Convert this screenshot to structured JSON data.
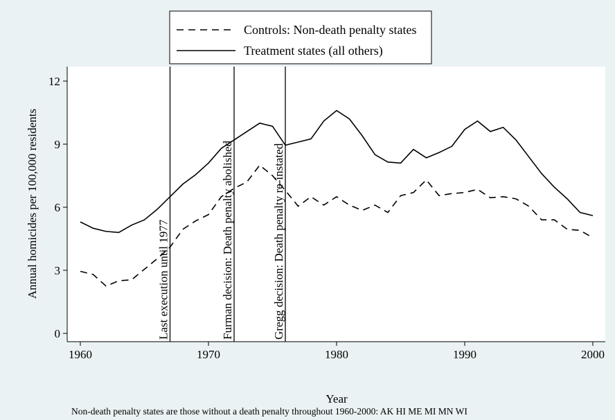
{
  "chart_data": {
    "type": "line",
    "x_label": "Year",
    "y_label": "Annual homicides per 100,000 residents",
    "note": "Non-death penalty states are those without a death penalty throughout 1960-2000: AK HI ME MI MN WI",
    "x": [
      1960,
      1961,
      1962,
      1963,
      1964,
      1965,
      1966,
      1967,
      1968,
      1969,
      1970,
      1971,
      1972,
      1973,
      1974,
      1975,
      1976,
      1977,
      1978,
      1979,
      1980,
      1981,
      1982,
      1983,
      1984,
      1985,
      1986,
      1987,
      1988,
      1989,
      1990,
      1991,
      1992,
      1993,
      1994,
      1995,
      1996,
      1997,
      1998,
      1999,
      2000
    ],
    "series": [
      {
        "name": "Controls: Non-death penalty states",
        "color": "#000000",
        "dash": "dashed",
        "values": [
          2.95,
          2.8,
          2.25,
          2.5,
          2.55,
          3.05,
          3.55,
          4.1,
          4.95,
          5.35,
          5.65,
          6.5,
          6.9,
          7.2,
          8.0,
          7.5,
          6.8,
          6.05,
          6.5,
          6.1,
          6.5,
          6.1,
          5.85,
          6.1,
          5.75,
          6.55,
          6.7,
          7.3,
          6.55,
          6.65,
          6.7,
          6.85,
          6.45,
          6.5,
          6.4,
          6.05,
          5.4,
          5.4,
          4.95,
          4.9,
          4.55
        ]
      },
      {
        "name": "Treatment states (all others)",
        "color": "#000000",
        "dash": "solid",
        "values": [
          5.3,
          5.0,
          4.85,
          4.8,
          5.15,
          5.4,
          5.9,
          6.5,
          7.1,
          7.55,
          8.1,
          8.8,
          9.2,
          9.6,
          10.0,
          9.85,
          8.95,
          9.1,
          9.25,
          10.1,
          10.6,
          10.2,
          9.4,
          8.5,
          8.15,
          8.1,
          8.75,
          8.35,
          8.6,
          8.9,
          9.7,
          10.1,
          9.6,
          9.8,
          9.2,
          8.4,
          7.6,
          6.95,
          6.4,
          5.75,
          5.6
        ]
      }
    ],
    "annotations": [
      {
        "x": 1967,
        "label": "Last execution until 1977"
      },
      {
        "x": 1972,
        "label": "Furman decision: Death penalty abolished"
      },
      {
        "x": 1976,
        "label": "Gregg decision: Death penalty re-instated"
      }
    ],
    "xlim": [
      1960,
      2000
    ],
    "ylim": [
      0,
      12
    ],
    "xticks": [
      1960,
      1970,
      1980,
      1990,
      2000
    ],
    "yticks": [
      0,
      3,
      6,
      9,
      12
    ],
    "grid": false,
    "legend_position": "top"
  }
}
